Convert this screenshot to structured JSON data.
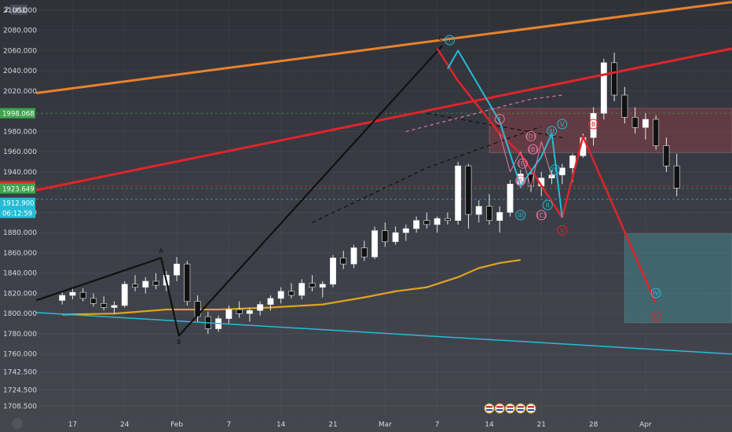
{
  "chart_data": {
    "type": "candlestick",
    "symbol": "",
    "currency": "USD",
    "ylim": [
      1700,
      2110
    ],
    "y_ticks": [
      "2100.000",
      "2080.000",
      "2060.000",
      "2040.000",
      "2020.000",
      "1980.000",
      "1960.000",
      "1940.000",
      "1900.000",
      "1880.000",
      "1860.000",
      "1840.000",
      "1820.000",
      "1800.000",
      "1780.000",
      "1760.000",
      "1742.500",
      "1724.500",
      "1708.500"
    ],
    "top_tick_label": "2 ..30",
    "x_ticks": [
      {
        "label": "17",
        "x": 1
      },
      {
        "label": "24",
        "x": 6
      },
      {
        "label": "Feb",
        "x": 11
      },
      {
        "label": "7",
        "x": 16
      },
      {
        "label": "14",
        "x": 21
      },
      {
        "label": "21",
        "x": 26
      },
      {
        "label": "Mar",
        "x": 31
      },
      {
        "label": "7",
        "x": 36
      },
      {
        "label": "14",
        "x": 41
      },
      {
        "label": "21",
        "x": 46
      },
      {
        "label": "28",
        "x": 51
      },
      {
        "label": "Apr",
        "x": 56
      }
    ],
    "x_range": [
      -2.5,
      64.3
    ],
    "price_badges": [
      {
        "label": "1998.068",
        "value": 1998.068,
        "color": "#3fa34d"
      },
      {
        "label": "1926.107",
        "value": 1926.107,
        "color": "#e0242a"
      },
      {
        "label": "1923.649",
        "value": 1923.649,
        "color": "#3fa34d"
      },
      {
        "label": "1912.900",
        "value": 1909.5,
        "color": "#26bcd6"
      },
      {
        "label": "06:12:59",
        "value": 1899.5,
        "color": "#26bcd6"
      }
    ],
    "price_lines": [
      {
        "value": 1998.068,
        "color": "#3fa34d"
      },
      {
        "value": 1926.107,
        "color": "#e0242a"
      },
      {
        "value": 1923.649,
        "color": "#3fa34d"
      },
      {
        "value": 1912.9,
        "color": "#26bcd6"
      }
    ],
    "candles": [
      [
        1813,
        1822,
        1809,
        1818
      ],
      [
        1818,
        1826,
        1814,
        1821
      ],
      [
        1821,
        1825,
        1812,
        1815
      ],
      [
        1815,
        1820,
        1807,
        1810
      ],
      [
        1810,
        1817,
        1803,
        1806
      ],
      [
        1806,
        1812,
        1800,
        1808
      ],
      [
        1808,
        1832,
        1806,
        1829
      ],
      [
        1829,
        1838,
        1822,
        1826
      ],
      [
        1826,
        1836,
        1820,
        1832
      ],
      [
        1832,
        1840,
        1824,
        1828
      ],
      [
        1828,
        1842,
        1822,
        1838
      ],
      [
        1838,
        1856,
        1832,
        1849
      ],
      [
        1849,
        1852,
        1808,
        1812
      ],
      [
        1812,
        1818,
        1792,
        1797
      ],
      [
        1797,
        1802,
        1780,
        1785
      ],
      [
        1785,
        1798,
        1782,
        1795
      ],
      [
        1795,
        1808,
        1790,
        1804
      ],
      [
        1804,
        1812,
        1796,
        1800
      ],
      [
        1800,
        1806,
        1792,
        1803
      ],
      [
        1803,
        1812,
        1798,
        1809
      ],
      [
        1809,
        1818,
        1803,
        1815
      ],
      [
        1815,
        1826,
        1810,
        1822
      ],
      [
        1822,
        1830,
        1815,
        1818
      ],
      [
        1818,
        1834,
        1814,
        1830
      ],
      [
        1830,
        1838,
        1822,
        1826
      ],
      [
        1826,
        1832,
        1816,
        1829
      ],
      [
        1829,
        1858,
        1826,
        1855
      ],
      [
        1855,
        1862,
        1844,
        1849
      ],
      [
        1849,
        1868,
        1845,
        1865
      ],
      [
        1865,
        1872,
        1852,
        1856
      ],
      [
        1856,
        1886,
        1854,
        1882
      ],
      [
        1882,
        1890,
        1866,
        1871
      ],
      [
        1871,
        1886,
        1868,
        1880
      ],
      [
        1880,
        1888,
        1872,
        1884
      ],
      [
        1884,
        1896,
        1880,
        1892
      ],
      [
        1892,
        1900,
        1884,
        1888
      ],
      [
        1888,
        1896,
        1880,
        1894
      ],
      [
        1894,
        1900,
        1888,
        1892
      ],
      [
        1892,
        1950,
        1888,
        1946
      ],
      [
        1946,
        1948,
        1884,
        1898
      ],
      [
        1898,
        1912,
        1890,
        1906
      ],
      [
        1906,
        1918,
        1888,
        1892
      ],
      [
        1892,
        1906,
        1880,
        1900
      ],
      [
        1900,
        1932,
        1896,
        1928
      ],
      [
        1928,
        1942,
        1924,
        1938
      ],
      [
        1938,
        1942,
        1920,
        1926
      ],
      [
        1926,
        1940,
        1916,
        1934
      ],
      [
        1934,
        1942,
        1928,
        1937
      ],
      [
        1937,
        1948,
        1928,
        1944
      ],
      [
        1944,
        1958,
        1930,
        1956
      ],
      [
        1956,
        1978,
        1954,
        1974
      ],
      [
        1974,
        2004,
        1966,
        1998
      ],
      [
        1998,
        2052,
        1992,
        2048
      ],
      [
        2048,
        2058,
        2010,
        2016
      ],
      [
        2016,
        2024,
        1988,
        1994
      ],
      [
        1994,
        2004,
        1978,
        1984
      ],
      [
        1984,
        1998,
        1972,
        1992
      ],
      [
        1992,
        1996,
        1962,
        1966
      ],
      [
        1966,
        1974,
        1940,
        1946
      ],
      [
        1946,
        1958,
        1916,
        1924
      ]
    ],
    "ma_series": [
      [
        0,
        1799
      ],
      [
        5,
        1800
      ],
      [
        10,
        1804
      ],
      [
        15,
        1804
      ],
      [
        20,
        1806
      ],
      [
        25,
        1809
      ],
      [
        29,
        1816
      ],
      [
        32,
        1822
      ],
      [
        35,
        1826
      ],
      [
        38,
        1836
      ],
      [
        40,
        1845
      ],
      [
        42,
        1850
      ],
      [
        44,
        1853
      ]
    ],
    "trendlines": [
      {
        "color": "#e8832a",
        "width": 3,
        "points": [
          [
            -2.5,
            2018
          ],
          [
            64.3,
            2108
          ]
        ]
      },
      {
        "color": "#e0242a",
        "width": 3,
        "points": [
          [
            -2.5,
            1922
          ],
          [
            64.3,
            2062
          ]
        ]
      },
      {
        "color": "#26bcd6",
        "width": 1.5,
        "points": [
          [
            -2.5,
            1801
          ],
          [
            64.3,
            1760
          ]
        ]
      }
    ],
    "wave_lines": [
      {
        "color": "#111111",
        "width": 2.2,
        "points": [
          [
            -2.5,
            1813
          ],
          [
            9.5,
            1855
          ],
          [
            11.2,
            1778
          ],
          [
            36.5,
            2065
          ]
        ]
      },
      {
        "color": "#111111",
        "width": 1.2,
        "dash": "5,4",
        "points": [
          [
            24,
            1890
          ],
          [
            35,
            1944
          ],
          [
            46,
            1985
          ]
        ]
      },
      {
        "color": "#111111",
        "width": 1.2,
        "dash": "5,4",
        "points": [
          [
            35,
            1998
          ],
          [
            48,
            1974
          ]
        ]
      },
      {
        "color": "#e0242a",
        "width": 2.5,
        "points": [
          [
            36,
            2062
          ],
          [
            38,
            2030
          ],
          [
            42,
            1978
          ],
          [
            44,
            1958
          ],
          [
            48,
            1895
          ],
          [
            50,
            1975
          ],
          [
            57,
            1810
          ]
        ]
      },
      {
        "color": "#26bcd6",
        "width": 2,
        "points": [
          [
            37,
            2042
          ],
          [
            38,
            2060
          ],
          [
            42,
            1990
          ],
          [
            44,
            1926
          ],
          [
            46,
            1955
          ],
          [
            47,
            1978
          ],
          [
            48,
            1895
          ]
        ]
      },
      {
        "color": "#e878a0",
        "width": 1,
        "points": [
          [
            42,
            1978
          ],
          [
            43,
            1940
          ],
          [
            44,
            1960
          ],
          [
            45,
            1925
          ],
          [
            46,
            1970
          ],
          [
            47,
            1935
          ]
        ]
      },
      {
        "color": "#e878a0",
        "width": 1.2,
        "dash": "4,4",
        "points": [
          [
            33,
            1980
          ],
          [
            45,
            2012
          ],
          [
            48,
            2016
          ]
        ]
      }
    ],
    "zones": [
      {
        "color": "rgba(210,70,80,0.28)",
        "x": [
          41,
          64.3
        ],
        "y": [
          1959,
          2003
        ]
      },
      {
        "color": "rgba(70,170,175,0.35)",
        "x": [
          54,
          64.3
        ],
        "y": [
          1791,
          1879
        ]
      }
    ],
    "wave_labels": [
      {
        "text": "A",
        "x": 9.5,
        "y": 1860,
        "color": "#111111"
      },
      {
        "text": "B",
        "x": 11.2,
        "y": 1770,
        "color": "#111111"
      },
      {
        "text": "C",
        "x": 36.3,
        "y": 2070,
        "color": "#111111"
      },
      {
        "text": "Ⓘ",
        "x": 37.2,
        "y": 2068,
        "color": "#26bcd6"
      },
      {
        "text": "III",
        "x": 44,
        "y": 1895,
        "color": "#26bcd6"
      },
      {
        "text": "I",
        "x": 42,
        "y": 1990,
        "color": "#e878a0"
      },
      {
        "text": "(A)",
        "x": 44,
        "y": 1929,
        "color": "#e878a0"
      },
      {
        "text": "(B)",
        "x": 45.2,
        "y": 1960,
        "color": "#e878a0"
      },
      {
        "text": "(C)",
        "x": 46,
        "y": 1895,
        "color": "#e878a0"
      },
      {
        "text": "(D)",
        "x": 45,
        "y": 1973,
        "color": "#e878a0"
      },
      {
        "text": "(E)",
        "x": 44.2,
        "y": 1946,
        "color": "#e878a0"
      },
      {
        "text": "II",
        "x": 46.6,
        "y": 1905,
        "color": "#26bcd6"
      },
      {
        "text": "IV",
        "x": 47.3,
        "y": 1940,
        "color": "#26bcd6"
      },
      {
        "text": "III",
        "x": 47,
        "y": 1978,
        "color": "#26bcd6"
      },
      {
        "text": "V",
        "x": 48,
        "y": 1985,
        "color": "#26bcd6"
      },
      {
        "text": "V",
        "x": 48,
        "y": 1880,
        "color": "#e0242a"
      },
      {
        "text": "B",
        "x": 51,
        "y": 1985,
        "color": "#e0242a"
      },
      {
        "text": "IV",
        "x": 57,
        "y": 1818,
        "color": "#26bcd6"
      },
      {
        "text": "C",
        "x": 57,
        "y": 1795,
        "color": "#e0242a"
      }
    ],
    "event_icons_x": [
      41,
      42,
      43,
      44,
      45
    ]
  }
}
